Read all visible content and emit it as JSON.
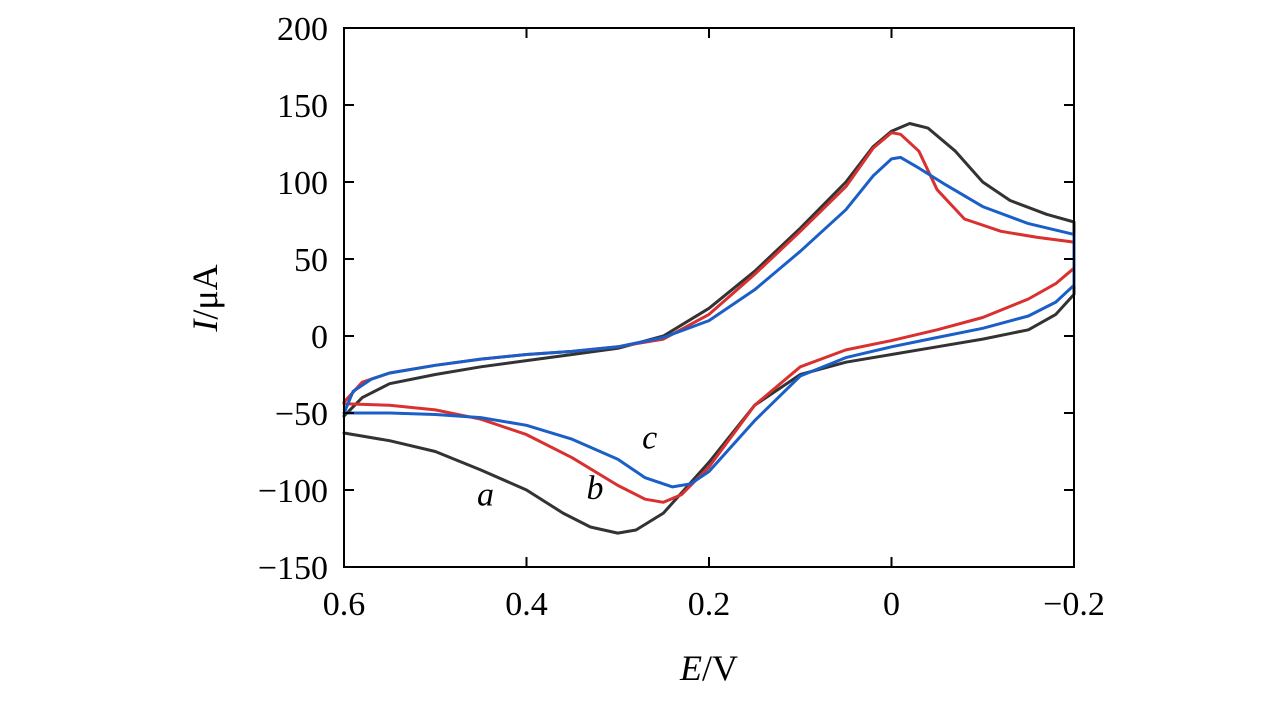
{
  "chart_data": {
    "type": "line",
    "title": "",
    "xlabel_italic": "E",
    "xlabel_unit": "/V",
    "ylabel_italic": "I",
    "ylabel_unit": "/μA",
    "xlim": [
      0.6,
      -0.2
    ],
    "ylim": [
      -150,
      200
    ],
    "x_ticks": [
      0.6,
      0.4,
      0.2,
      0,
      -0.2
    ],
    "x_tick_labels": [
      "0.6",
      "0.4",
      "0.2",
      "0",
      "−0.2"
    ],
    "y_ticks": [
      200,
      150,
      100,
      50,
      0,
      -50,
      -100,
      -150
    ],
    "y_tick_labels": [
      "200",
      "150",
      "100",
      "50",
      "0",
      "−50",
      "−100",
      "−150"
    ],
    "grid": false,
    "series": [
      {
        "name": "a",
        "color": "#333333",
        "points": [
          [
            0.6,
            -52
          ],
          [
            0.58,
            -40
          ],
          [
            0.55,
            -31
          ],
          [
            0.5,
            -25
          ],
          [
            0.45,
            -20
          ],
          [
            0.4,
            -16
          ],
          [
            0.35,
            -12
          ],
          [
            0.3,
            -8
          ],
          [
            0.25,
            0
          ],
          [
            0.2,
            18
          ],
          [
            0.15,
            42
          ],
          [
            0.1,
            70
          ],
          [
            0.05,
            100
          ],
          [
            0.02,
            123
          ],
          [
            0.0,
            133
          ],
          [
            -0.02,
            138
          ],
          [
            -0.04,
            135
          ],
          [
            -0.07,
            120
          ],
          [
            -0.1,
            100
          ],
          [
            -0.13,
            88
          ],
          [
            -0.17,
            79
          ],
          [
            -0.2,
            74
          ],
          [
            -0.2,
            27
          ],
          [
            -0.18,
            14
          ],
          [
            -0.15,
            4
          ],
          [
            -0.1,
            -2
          ],
          [
            -0.05,
            -7
          ],
          [
            0.0,
            -12
          ],
          [
            0.05,
            -17
          ],
          [
            0.1,
            -25
          ],
          [
            0.15,
            -45
          ],
          [
            0.2,
            -82
          ],
          [
            0.25,
            -115
          ],
          [
            0.28,
            -126
          ],
          [
            0.3,
            -128
          ],
          [
            0.33,
            -124
          ],
          [
            0.36,
            -115
          ],
          [
            0.4,
            -100
          ],
          [
            0.45,
            -87
          ],
          [
            0.5,
            -75
          ],
          [
            0.55,
            -68
          ],
          [
            0.6,
            -63
          ]
        ]
      },
      {
        "name": "b",
        "color": "#d93030",
        "points": [
          [
            0.6,
            -43
          ],
          [
            0.58,
            -30
          ],
          [
            0.55,
            -24
          ],
          [
            0.5,
            -19
          ],
          [
            0.45,
            -15
          ],
          [
            0.4,
            -12
          ],
          [
            0.35,
            -10
          ],
          [
            0.3,
            -7
          ],
          [
            0.25,
            -2
          ],
          [
            0.2,
            14
          ],
          [
            0.15,
            40
          ],
          [
            0.1,
            68
          ],
          [
            0.05,
            97
          ],
          [
            0.02,
            122
          ],
          [
            0.0,
            132
          ],
          [
            -0.01,
            131
          ],
          [
            -0.03,
            120
          ],
          [
            -0.05,
            95
          ],
          [
            -0.08,
            76
          ],
          [
            -0.12,
            68
          ],
          [
            -0.16,
            64
          ],
          [
            -0.2,
            61
          ],
          [
            -0.2,
            44
          ],
          [
            -0.18,
            34
          ],
          [
            -0.15,
            24
          ],
          [
            -0.1,
            12
          ],
          [
            -0.05,
            4
          ],
          [
            0.0,
            -3
          ],
          [
            0.05,
            -9
          ],
          [
            0.1,
            -20
          ],
          [
            0.15,
            -45
          ],
          [
            0.2,
            -85
          ],
          [
            0.23,
            -103
          ],
          [
            0.25,
            -108
          ],
          [
            0.27,
            -106
          ],
          [
            0.3,
            -97
          ],
          [
            0.35,
            -79
          ],
          [
            0.4,
            -64
          ],
          [
            0.45,
            -54
          ],
          [
            0.5,
            -48
          ],
          [
            0.55,
            -45
          ],
          [
            0.6,
            -44
          ]
        ]
      },
      {
        "name": "c",
        "color": "#1a5fc8",
        "points": [
          [
            0.6,
            -50
          ],
          [
            0.59,
            -36
          ],
          [
            0.57,
            -28
          ],
          [
            0.55,
            -24
          ],
          [
            0.5,
            -19
          ],
          [
            0.45,
            -15
          ],
          [
            0.4,
            -12
          ],
          [
            0.35,
            -10
          ],
          [
            0.3,
            -7
          ],
          [
            0.25,
            -1
          ],
          [
            0.2,
            10
          ],
          [
            0.15,
            30
          ],
          [
            0.1,
            55
          ],
          [
            0.05,
            82
          ],
          [
            0.02,
            104
          ],
          [
            0.0,
            115
          ],
          [
            -0.01,
            116
          ],
          [
            -0.03,
            109
          ],
          [
            -0.06,
            98
          ],
          [
            -0.1,
            84
          ],
          [
            -0.15,
            73
          ],
          [
            -0.2,
            66
          ],
          [
            -0.2,
            33
          ],
          [
            -0.18,
            22
          ],
          [
            -0.15,
            13
          ],
          [
            -0.1,
            5
          ],
          [
            -0.05,
            -1
          ],
          [
            0.0,
            -7
          ],
          [
            0.05,
            -14
          ],
          [
            0.1,
            -26
          ],
          [
            0.15,
            -55
          ],
          [
            0.2,
            -88
          ],
          [
            0.22,
            -96
          ],
          [
            0.24,
            -98
          ],
          [
            0.27,
            -92
          ],
          [
            0.3,
            -80
          ],
          [
            0.35,
            -67
          ],
          [
            0.4,
            -58
          ],
          [
            0.45,
            -53
          ],
          [
            0.5,
            -51
          ],
          [
            0.55,
            -50
          ],
          [
            0.6,
            -50
          ]
        ]
      }
    ],
    "annotations": [
      {
        "text": "a",
        "x": 0.445,
        "y": -110
      },
      {
        "text": "b",
        "x": 0.325,
        "y": -106
      },
      {
        "text": "c",
        "x": 0.265,
        "y": -73
      }
    ]
  }
}
